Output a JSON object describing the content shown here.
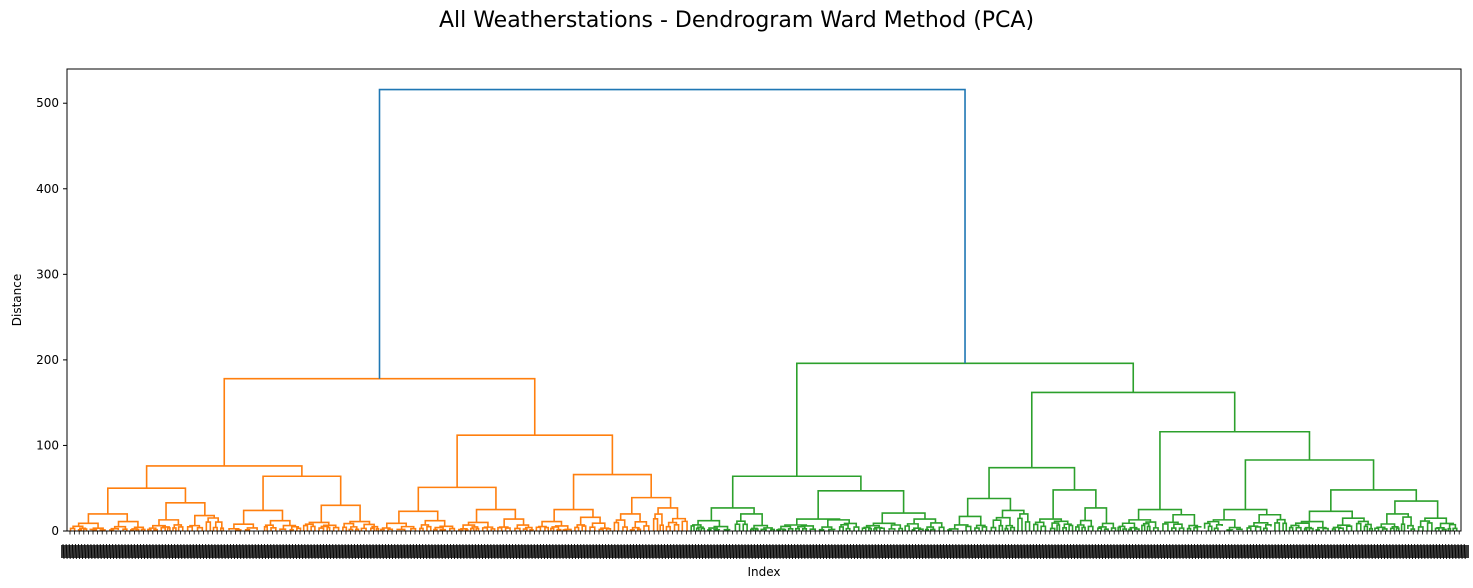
{
  "chart_data": {
    "type": "dendrogram",
    "title": "All Weatherstations - Dendrogram Ward Method (PCA)",
    "xlabel": "Index",
    "ylabel": "Distance",
    "ylim": [
      0,
      540
    ],
    "yticks": [
      0,
      100,
      200,
      300,
      400,
      500
    ],
    "grid": false,
    "colors": {
      "root": "#1f77b4",
      "cluster1": "#ff7f0e",
      "cluster2": "#2ca02c"
    },
    "root_height": 516,
    "clusters": [
      {
        "name": "cluster1",
        "color": "#ff7f0e",
        "height": 178,
        "children": [
          {
            "height": 76,
            "children": [
              {
                "height": 50,
                "children": [
                  {
                    "height": 20,
                    "children": [
                      {
                        "height": 9
                      },
                      {
                        "height": 11
                      }
                    ]
                  },
                  {
                    "height": 33,
                    "children": [
                      {
                        "height": 13
                      },
                      {
                        "height": 18
                      }
                    ]
                  }
                ]
              },
              {
                "height": 64,
                "children": [
                  {
                    "height": 24,
                    "children": [
                      {
                        "height": 8
                      },
                      {
                        "height": 12
                      }
                    ]
                  },
                  {
                    "height": 30,
                    "children": [
                      {
                        "height": 10
                      },
                      {
                        "height": 11
                      }
                    ]
                  }
                ]
              }
            ]
          },
          {
            "height": 112,
            "children": [
              {
                "height": 51,
                "children": [
                  {
                    "height": 23,
                    "children": [
                      {
                        "height": 9
                      },
                      {
                        "height": 12
                      }
                    ]
                  },
                  {
                    "height": 25,
                    "children": [
                      {
                        "height": 10
                      },
                      {
                        "height": 14
                      }
                    ]
                  }
                ]
              },
              {
                "height": 66,
                "children": [
                  {
                    "height": 25,
                    "children": [
                      {
                        "height": 11
                      },
                      {
                        "height": 16
                      }
                    ]
                  },
                  {
                    "height": 39,
                    "children": [
                      {
                        "height": 20
                      },
                      {
                        "height": 27
                      }
                    ]
                  }
                ]
              }
            ]
          }
        ]
      },
      {
        "name": "cluster2",
        "color": "#2ca02c",
        "height": 196,
        "children": [
          {
            "height": 64,
            "children": [
              {
                "height": 27,
                "children": [
                  {
                    "height": 12
                  },
                  {
                    "height": 20
                  }
                ]
              },
              {
                "height": 47,
                "children": [
                  {
                    "height": 14,
                    "children": [
                      {
                        "height": 7
                      },
                      {
                        "height": 13
                      }
                    ]
                  },
                  {
                    "height": 21,
                    "children": [
                      {
                        "height": 9
                      },
                      {
                        "height": 14
                      }
                    ]
                  }
                ]
              }
            ]
          },
          {
            "height": 162,
            "children": [
              {
                "height": 74,
                "children": [
                  {
                    "height": 38,
                    "children": [
                      {
                        "height": 17
                      },
                      {
                        "height": 24
                      }
                    ]
                  },
                  {
                    "height": 48,
                    "children": [
                      {
                        "height": 14
                      },
                      {
                        "height": 27
                      }
                    ]
                  }
                ]
              },
              {
                "height": 116,
                "children": [
                  {
                    "height": 25,
                    "children": [
                      {
                        "height": 13
                      },
                      {
                        "height": 19
                      }
                    ]
                  },
                  {
                    "height": 83,
                    "children": [
                      {
                        "height": 25,
                        "children": [
                          {
                            "height": 13
                          },
                          {
                            "height": 19
                          }
                        ]
                      },
                      {
                        "height": 48,
                        "children": [
                          {
                            "height": 23,
                            "children": [
                              {
                                "height": 11
                              },
                              {
                                "height": 15
                              }
                            ]
                          },
                          {
                            "height": 35,
                            "children": [
                              {
                                "height": 20
                              },
                              {
                                "height": 15
                              }
                            ]
                          }
                        ]
                      }
                    ]
                  }
                ]
              }
            ]
          }
        ]
      }
    ]
  }
}
